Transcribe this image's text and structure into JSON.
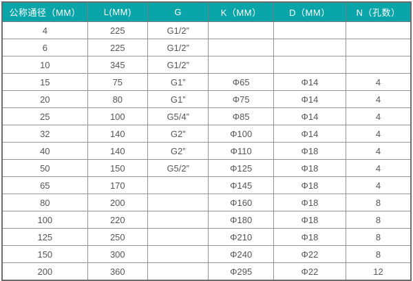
{
  "table": {
    "name": "flange-dimension-spec-table",
    "columns": [
      "公称通径（MM）",
      "L(MM)",
      "G",
      "K（MM）",
      "D（MM）",
      "N（孔数）"
    ],
    "rows": [
      [
        "4",
        "225",
        "G1/2”",
        "",
        "",
        ""
      ],
      [
        "6",
        "225",
        "G1/2”",
        "",
        "",
        ""
      ],
      [
        "10",
        "345",
        "G1/2”",
        "",
        "",
        ""
      ],
      [
        "15",
        "75",
        "G1”",
        "Φ65",
        "Φ14",
        "4"
      ],
      [
        "20",
        "80",
        "G1”",
        "Φ75",
        "Φ14",
        "4"
      ],
      [
        "25",
        "100",
        "G5/4”",
        "Φ85",
        "Φ14",
        "4"
      ],
      [
        "32",
        "140",
        "G2”",
        "Φ100",
        "Φ14",
        "4"
      ],
      [
        "40",
        "140",
        "G2”",
        "Φ110",
        "Φ18",
        "4"
      ],
      [
        "50",
        "150",
        "G5/2”",
        "Φ125",
        "Φ18",
        "4"
      ],
      [
        "65",
        "170",
        "",
        "Φ145",
        "Φ18",
        "4"
      ],
      [
        "80",
        "200",
        "",
        "Φ160",
        "Φ18",
        "8"
      ],
      [
        "100",
        "220",
        "",
        "Φ180",
        "Φ18",
        "8"
      ],
      [
        "125",
        "250",
        "",
        "Φ210",
        "Φ18",
        "8"
      ],
      [
        "150",
        "300",
        "",
        "Φ240",
        "Φ22",
        "8"
      ],
      [
        "200",
        "360",
        "",
        "Φ295",
        "Φ22",
        "12"
      ]
    ],
    "colors": {
      "header_background": "#0aa5a8",
      "header_text": "#ffffff",
      "grid_line": "#919294",
      "outer_border": "#6a6b6d",
      "cell_text": "#555557",
      "cell_background": "#ffffff"
    }
  }
}
